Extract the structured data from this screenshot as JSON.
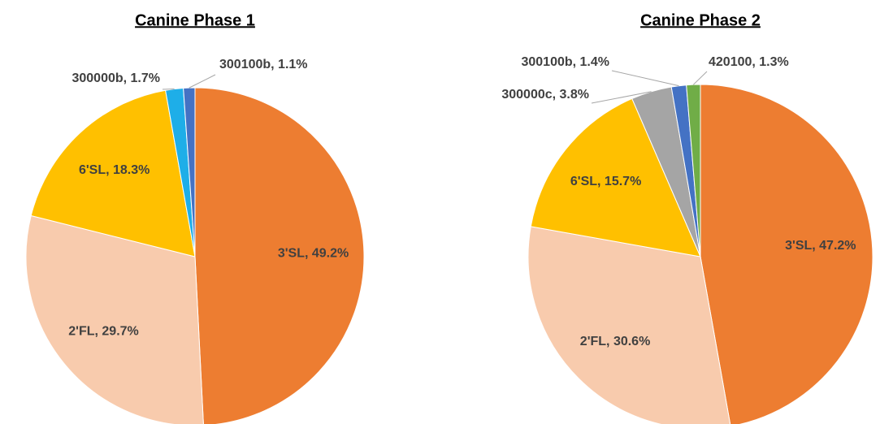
{
  "chart_data": [
    {
      "type": "pie",
      "title": "Canine Phase 1",
      "labels": [
        "3'SL, 49.2%",
        "2'FL, 29.7%",
        "6'SL, 18.3%",
        "300000b, 1.7%",
        "300100b, 1.1%"
      ],
      "values": [
        49.2,
        29.7,
        18.3,
        1.7,
        1.1
      ],
      "colors": [
        "#ed7d31",
        "#f8cbad",
        "#ffc000",
        "#1eaee8",
        "#4472c4"
      ]
    },
    {
      "type": "pie",
      "title": "Canine Phase 2",
      "labels": [
        "3'SL, 47.2%",
        "2'FL, 30.6%",
        "6'SL, 15.7%",
        "300000c, 3.8%",
        "300100b, 1.4%",
        "420100, 1.3%"
      ],
      "values": [
        47.2,
        30.6,
        15.7,
        3.8,
        1.4,
        1.3
      ],
      "colors": [
        "#ed7d31",
        "#f8cbad",
        "#ffc000",
        "#a5a5a5",
        "#4472c4",
        "#70ad47"
      ]
    }
  ]
}
